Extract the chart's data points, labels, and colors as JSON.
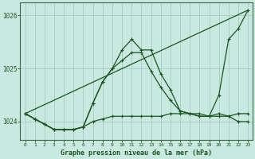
{
  "title": "Graphe pression niveau de la mer (hPa)",
  "bg_color": "#c8e8e0",
  "grid_color": "#a8ccc4",
  "line_color": "#1a5520",
  "xlim": [
    -0.5,
    23.5
  ],
  "ylim": [
    1023.65,
    1026.25
  ],
  "yticks": [
    1024,
    1025,
    1026
  ],
  "xticks": [
    0,
    1,
    2,
    3,
    4,
    5,
    6,
    7,
    8,
    9,
    10,
    11,
    12,
    13,
    14,
    15,
    16,
    17,
    18,
    19,
    20,
    21,
    22,
    23
  ],
  "series": [
    {
      "x": [
        0,
        1,
        2,
        3,
        4,
        5,
        6,
        7,
        8,
        9,
        10,
        11,
        12,
        13,
        14,
        15,
        16,
        17,
        18,
        19,
        20,
        21,
        22,
        23
      ],
      "y": [
        1024.15,
        1024.05,
        1023.95,
        1023.85,
        1023.85,
        1023.85,
        1023.9,
        1024.35,
        1024.75,
        1025.0,
        1025.15,
        1025.3,
        1025.3,
        1024.95,
        1024.65,
        1024.4,
        1024.2,
        1024.15,
        1024.1,
        1024.1,
        1024.15,
        1024.1,
        1024.0,
        1024.0
      ]
    },
    {
      "x": [
        0,
        1,
        2,
        3,
        4,
        5,
        6,
        7,
        8,
        9,
        10,
        11,
        12,
        13,
        14,
        15,
        16,
        17,
        18,
        19,
        20,
        21,
        22,
        23
      ],
      "y": [
        1024.15,
        1024.05,
        1023.95,
        1023.85,
        1023.85,
        1023.85,
        1023.9,
        1024.35,
        1024.75,
        1025.0,
        1025.35,
        1025.55,
        1025.35,
        1025.35,
        1024.9,
        1024.6,
        1024.2,
        1024.15,
        1024.1,
        1024.1,
        1024.5,
        1025.55,
        1025.75,
        1026.1
      ]
    },
    {
      "x": [
        0,
        1,
        2,
        3,
        4,
        5,
        6,
        7,
        8,
        9,
        10,
        11,
        12,
        13,
        14,
        15,
        16,
        17,
        18,
        19,
        20,
        21,
        22,
        23
      ],
      "y": [
        1024.15,
        1024.05,
        1023.95,
        1023.85,
        1023.85,
        1023.85,
        1023.9,
        1024.0,
        1024.05,
        1024.1,
        1024.1,
        1024.1,
        1024.1,
        1024.1,
        1024.1,
        1024.15,
        1024.15,
        1024.15,
        1024.15,
        1024.1,
        1024.1,
        1024.1,
        1024.15,
        1024.15
      ]
    },
    {
      "x": [
        0,
        23
      ],
      "y": [
        1024.15,
        1026.1
      ],
      "no_marker": true
    }
  ]
}
